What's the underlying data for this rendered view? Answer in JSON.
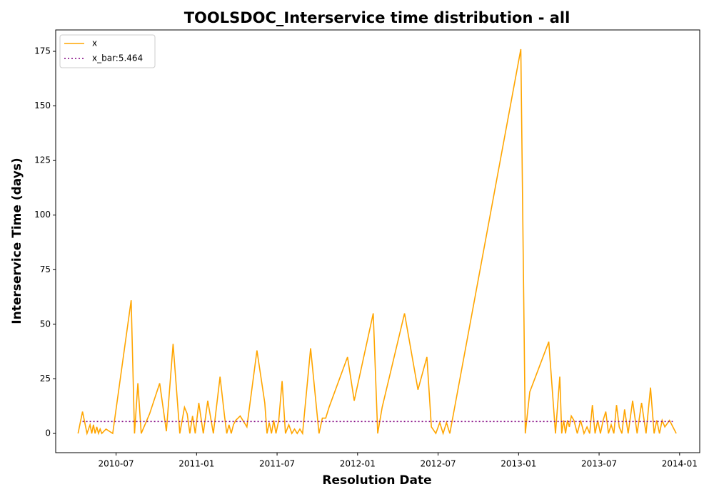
{
  "chart_data": {
    "type": "line",
    "title": "TOOLSDOC_Interservice time distribution - all",
    "xlabel": "Resolution Date",
    "ylabel": "Interservice Time (days)",
    "xlim": [
      "2010-02",
      "2014-02"
    ],
    "xticks": [
      "2010-07",
      "2011-01",
      "2011-07",
      "2012-01",
      "2012-07",
      "2013-01",
      "2013-07",
      "2014-01"
    ],
    "ylim": [
      -8.8,
      184.8
    ],
    "yticks": [
      0,
      25,
      50,
      75,
      100,
      125,
      150,
      175
    ],
    "legend": "upper left",
    "series": [
      {
        "name": "x",
        "color": "#ffa500",
        "linestyle": "solid",
        "x": [
          "2010-04",
          "2010-04",
          "2010-04",
          "2010-05",
          "2010-05",
          "2010-05",
          "2010-05",
          "2010-05",
          "2010-05",
          "2010-05",
          "2010-05",
          "2010-06",
          "2010-06",
          "2010-08",
          "2010-08",
          "2010-08",
          "2010-08",
          "2010-09",
          "2010-10",
          "2010-10",
          "2010-11",
          "2010-11",
          "2010-12",
          "2010-12",
          "2010-12",
          "2010-12",
          "2010-12",
          "2011-01",
          "2011-01",
          "2011-01",
          "2011-02",
          "2011-02",
          "2011-03",
          "2011-03",
          "2011-03",
          "2011-03",
          "2011-03",
          "2011-03",
          "2011-04",
          "2011-04",
          "2011-05",
          "2011-06",
          "2011-06",
          "2011-06",
          "2011-06",
          "2011-06",
          "2011-06",
          "2011-07",
          "2011-07",
          "2011-07",
          "2011-07",
          "2011-08",
          "2011-08",
          "2011-08",
          "2011-08",
          "2011-08",
          "2011-09",
          "2011-10",
          "2011-10",
          "2011-10",
          "2011-10",
          "2011-12",
          "2011-12",
          "2012-02",
          "2012-02",
          "2012-02",
          "2012-04",
          "2012-05",
          "2012-06",
          "2012-06",
          "2012-06",
          "2012-07",
          "2012-07",
          "2012-07",
          "2012-07",
          "2013-01",
          "2013-01",
          "2013-01",
          "2013-03",
          "2013-03",
          "2013-04",
          "2013-04",
          "2013-04",
          "2013-04",
          "2013-04",
          "2013-04",
          "2013-04",
          "2013-05",
          "2013-05",
          "2013-05",
          "2013-05",
          "2013-06",
          "2013-06",
          "2013-06",
          "2013-06",
          "2013-06",
          "2013-07",
          "2013-07",
          "2013-07",
          "2013-07",
          "2013-07",
          "2013-08",
          "2013-08",
          "2013-08",
          "2013-08",
          "2013-08",
          "2013-09",
          "2013-09",
          "2013-09",
          "2013-10",
          "2013-10",
          "2013-10",
          "2013-11",
          "2013-11",
          "2013-11",
          "2013-11",
          "2013-11",
          "2013-12",
          "2013-12"
        ],
        "values": [
          0,
          10,
          0,
          4,
          0,
          4,
          0,
          3,
          0,
          2,
          0,
          2,
          0,
          61,
          0,
          23,
          0,
          9,
          23,
          1,
          41,
          0,
          12,
          9,
          0,
          8,
          0,
          14,
          0,
          15,
          0,
          26,
          8,
          0,
          4,
          0,
          4,
          6,
          8,
          3,
          38,
          14,
          0,
          5,
          0,
          6,
          0,
          6,
          24,
          0,
          4,
          0,
          2,
          0,
          2,
          0,
          39,
          0,
          7,
          7,
          12,
          35,
          15,
          55,
          0,
          12,
          55,
          20,
          35,
          3,
          0,
          5,
          0,
          5,
          0,
          176,
          0,
          19,
          42,
          0,
          26,
          0,
          6,
          0,
          6,
          3,
          8,
          6,
          0,
          6,
          0,
          3,
          0,
          13,
          0,
          6,
          0,
          6,
          10,
          0,
          4,
          0,
          13,
          3,
          0,
          11,
          0,
          15,
          0,
          14,
          0,
          21,
          0,
          6,
          0,
          6,
          3,
          6,
          0
        ]
      },
      {
        "name": "x_bar:5.464",
        "color": "#800080",
        "linestyle": "dotted",
        "x": [
          "2010-04",
          "2013-12"
        ],
        "values": [
          5.464,
          5.464
        ]
      }
    ]
  }
}
